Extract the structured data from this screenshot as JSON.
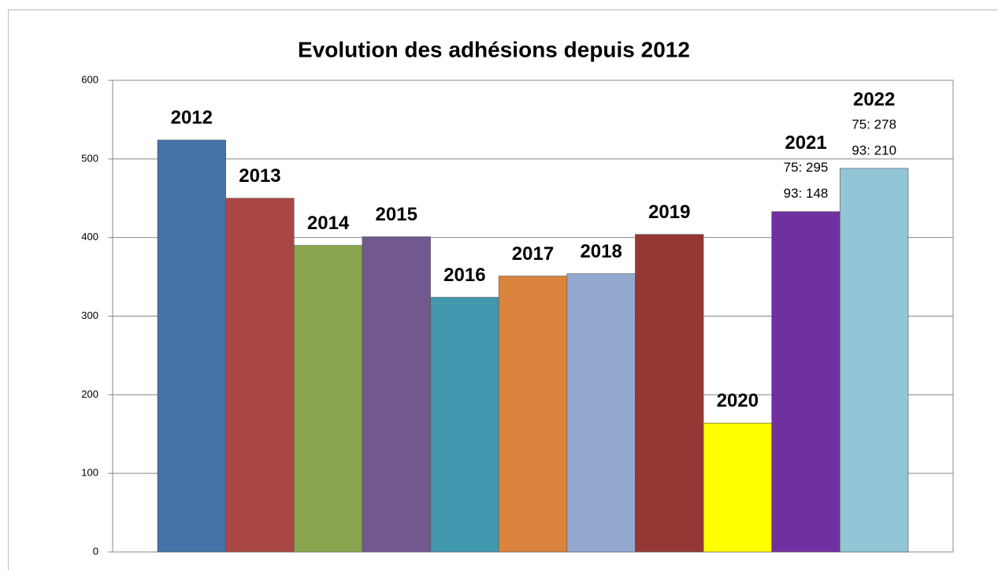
{
  "chart_data": {
    "type": "bar",
    "title": "Evolution des adhésions depuis 2012",
    "categories": [
      "2012",
      "2013",
      "2014",
      "2015",
      "2016",
      "2017",
      "2018",
      "2019",
      "2020",
      "2021",
      "2022"
    ],
    "values": [
      524,
      450,
      390,
      401,
      324,
      351,
      354,
      404,
      164,
      433,
      488
    ],
    "colors": [
      "#4572a7",
      "#aa4643",
      "#89a54e",
      "#71588f",
      "#4198af",
      "#db843d",
      "#93a9cf",
      "#953735",
      "#ffff00",
      "#7030a0",
      "#92c5d6"
    ],
    "notes": [
      [],
      [],
      [],
      [],
      [],
      [],
      [],
      [],
      [],
      [
        "75: 295",
        "93: 148"
      ],
      [
        "75: 278",
        "93: 210"
      ]
    ],
    "ylim": [
      0,
      600
    ],
    "yticks": [
      0,
      100,
      200,
      300,
      400,
      500,
      600
    ],
    "grid": true
  }
}
